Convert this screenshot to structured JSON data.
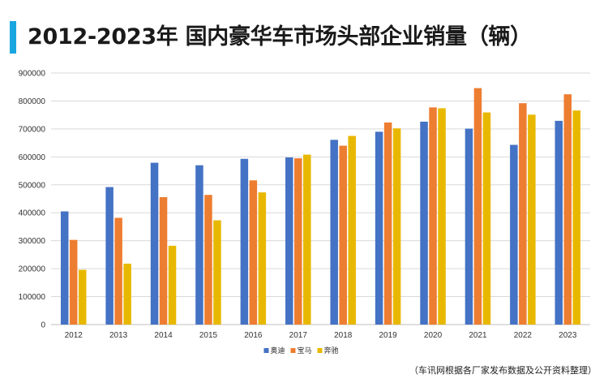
{
  "title": "2012-2023年 国内豪华车市场头部企业销量（辆）",
  "source_note": "（车讯网根据各厂家发布数据及公开资料整理）",
  "colors": {
    "title_accent": "#1aa6e0",
    "grid": "#d9d9d9",
    "axis": "#bfbfbf"
  },
  "chart_data": {
    "type": "bar",
    "title": "2012-2023年 国内豪华车市场头部企业销量（辆）",
    "xlabel": "",
    "ylabel": "",
    "ylim": [
      0,
      900000
    ],
    "yticks": [
      "0",
      "100000",
      "200000",
      "300000",
      "400000",
      "500000",
      "600000",
      "700000",
      "800000",
      "900000"
    ],
    "ytick_values": [
      0,
      100000,
      200000,
      300000,
      400000,
      500000,
      600000,
      700000,
      800000,
      900000
    ],
    "categories": [
      "2012",
      "2013",
      "2014",
      "2015",
      "2016",
      "2017",
      "2018",
      "2019",
      "2020",
      "2021",
      "2022",
      "2023"
    ],
    "legend_position": "bottom-center",
    "series": [
      {
        "name": "奥迪",
        "color": "#4472c4",
        "values": [
          405000,
          492000,
          579000,
          570000,
          593000,
          598000,
          661000,
          690000,
          726000,
          701000,
          643000,
          729000
        ]
      },
      {
        "name": "宝马",
        "color": "#ed7d31",
        "values": [
          303000,
          382000,
          456000,
          464000,
          516000,
          595000,
          640000,
          723000,
          777000,
          846000,
          792000,
          824000
        ]
      },
      {
        "name": "奔驰",
        "color": "#e8b800",
        "values": [
          196000,
          218000,
          282000,
          373000,
          473000,
          608000,
          675000,
          702000,
          774000,
          759000,
          751000,
          766000
        ]
      }
    ]
  }
}
